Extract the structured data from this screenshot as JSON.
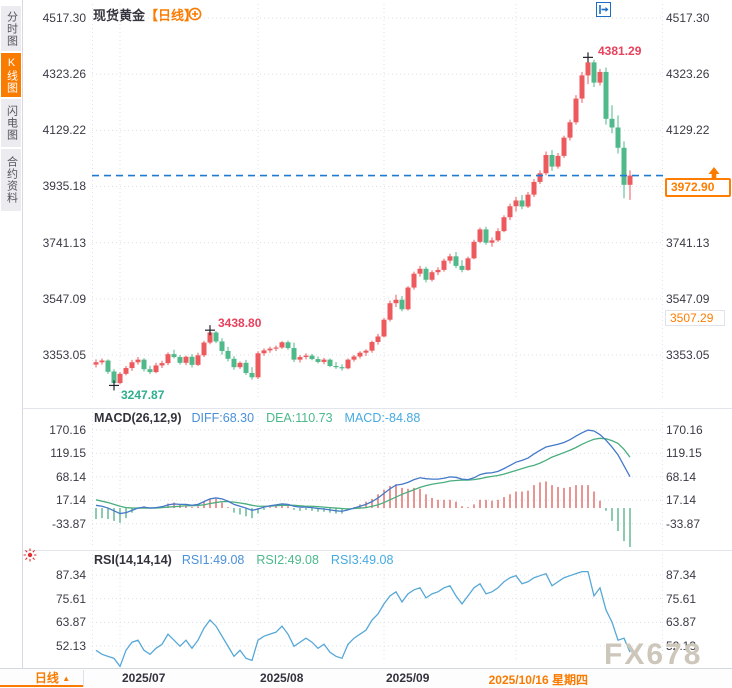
{
  "header": {
    "symbol": "现货黄金",
    "period_tag": "【日线】"
  },
  "sidebar": {
    "tabs": [
      {
        "label": "分时图",
        "active": false
      },
      {
        "label": "K线图",
        "active": true
      },
      {
        "label": "闪电图",
        "active": false
      },
      {
        "label": "合约资料",
        "active": false
      }
    ]
  },
  "toolbar": {
    "icons": [
      {
        "name": "move-crosshair-icon",
        "active": false
      },
      {
        "name": "axis-scale-icon",
        "active": false
      },
      {
        "name": "axis-scale-active-icon",
        "active": true
      },
      {
        "name": "pan-right-icon",
        "active": false
      }
    ]
  },
  "colors": {
    "accent_orange": "#f97b00",
    "up_red": "#ec5a5e",
    "down_green": "#4fb98a",
    "ann_red": "#e8415c",
    "ann_green": "#2fae8e",
    "dashed_blue": "#1f7ad4",
    "diff_line": "#4479c8",
    "dea_line": "#4aae7e",
    "rsi_line": "#56a8d8",
    "hist_up": "#d9504c",
    "hist_down": "#3ea878",
    "icon_blue": "#1b6ec2"
  },
  "bottom_bar": {
    "period_button": "日线",
    "period_arrow": "▲",
    "watermark": "FX678"
  },
  "indicators": {
    "macd": {
      "title": "MACD(26,12,9)",
      "diff_label": "DIFF:68.30",
      "dea_label": "DEA:110.73",
      "macd_label": "MACD:-84.88"
    },
    "rsi": {
      "title": "RSI(14,14,14)",
      "rsi1_label": "RSI1:49.08",
      "rsi2_label": "RSI2:49.08",
      "rsi3_label": "RSI3:49.08"
    }
  },
  "chart_data": [
    {
      "type": "candlestick",
      "title": "现货黄金 日线",
      "y_ticks": [
        "4517.30",
        "4323.26",
        "4129.22",
        "3935.18",
        "3741.13",
        "3547.09",
        "3353.05"
      ],
      "y_tick_values": [
        4517.3,
        4323.26,
        4129.22,
        3935.18,
        3741.13,
        3547.09,
        3353.05
      ],
      "month_ticks": [
        {
          "label": "2025/07",
          "index": 4
        },
        {
          "label": "2025/08",
          "index": 27
        },
        {
          "label": "2025/09",
          "index": 48
        },
        {
          "label": "2025/10",
          "index": 70,
          "hidden": true
        }
      ],
      "highlight_date": {
        "label": "2025/10/16 星期四",
        "index": 82
      },
      "annotations": {
        "high": {
          "index": 82,
          "price": 4381.29,
          "label": "4381.29"
        },
        "swing_high": {
          "index": 19,
          "price": 3438.8,
          "label": "3438.80"
        },
        "low": {
          "index": 3,
          "price": 3247.87,
          "label": "3247.87"
        },
        "current_price": {
          "label": "3972.90",
          "value": 3972.9
        },
        "level2": {
          "label": "3507.29",
          "value": 3507.29
        }
      },
      "candles": [
        [
          3320,
          3338,
          3310,
          3328
        ],
        [
          3328,
          3341,
          3320,
          3334
        ],
        [
          3334,
          3338,
          3288,
          3295
        ],
        [
          3296,
          3304,
          3247.87,
          3256
        ],
        [
          3256,
          3294,
          3252,
          3288
        ],
        [
          3288,
          3315,
          3283,
          3308
        ],
        [
          3308,
          3336,
          3298,
          3328
        ],
        [
          3328,
          3346,
          3320,
          3337
        ],
        [
          3337,
          3342,
          3296,
          3304
        ],
        [
          3304,
          3316,
          3287,
          3294
        ],
        [
          3294,
          3326,
          3290,
          3317
        ],
        [
          3317,
          3333,
          3308,
          3325
        ],
        [
          3325,
          3362,
          3318,
          3356
        ],
        [
          3356,
          3371,
          3341,
          3346
        ],
        [
          3346,
          3353,
          3320,
          3326
        ],
        [
          3326,
          3351,
          3318,
          3347
        ],
        [
          3347,
          3356,
          3310,
          3319
        ],
        [
          3319,
          3361,
          3315,
          3352
        ],
        [
          3352,
          3402,
          3346,
          3396
        ],
        [
          3396,
          3438.8,
          3390,
          3431
        ],
        [
          3431,
          3436,
          3394,
          3400
        ],
        [
          3400,
          3411,
          3354,
          3367
        ],
        [
          3367,
          3381,
          3331,
          3340
        ],
        [
          3340,
          3349,
          3302,
          3311
        ],
        [
          3311,
          3331,
          3305,
          3326
        ],
        [
          3326,
          3336,
          3284,
          3291
        ],
        [
          3291,
          3311,
          3268,
          3276
        ],
        [
          3276,
          3366,
          3270,
          3359
        ],
        [
          3359,
          3376,
          3350,
          3369
        ],
        [
          3369,
          3382,
          3361,
          3375
        ],
        [
          3375,
          3386,
          3367,
          3379
        ],
        [
          3379,
          3401,
          3374,
          3397
        ],
        [
          3397,
          3403,
          3371,
          3377
        ],
        [
          3377,
          3396,
          3329,
          3337
        ],
        [
          3337,
          3353,
          3327,
          3346
        ],
        [
          3346,
          3359,
          3338,
          3351
        ],
        [
          3351,
          3357,
          3335,
          3339
        ],
        [
          3339,
          3348,
          3324,
          3329
        ],
        [
          3329,
          3343,
          3321,
          3337
        ],
        [
          3337,
          3341,
          3311,
          3315
        ],
        [
          3315,
          3329,
          3305,
          3311
        ],
        [
          3311,
          3321,
          3299,
          3307
        ],
        [
          3307,
          3341,
          3304,
          3337
        ],
        [
          3337,
          3353,
          3330,
          3348
        ],
        [
          3348,
          3366,
          3341,
          3361
        ],
        [
          3361,
          3373,
          3350,
          3368
        ],
        [
          3368,
          3403,
          3361,
          3398
        ],
        [
          3398,
          3426,
          3389,
          3417
        ],
        [
          3417,
          3481,
          3414,
          3475
        ],
        [
          3475,
          3541,
          3469,
          3532
        ],
        [
          3532,
          3561,
          3519,
          3544
        ],
        [
          3544,
          3557,
          3504,
          3511
        ],
        [
          3511,
          3591,
          3507,
          3586
        ],
        [
          3586,
          3641,
          3579,
          3634
        ],
        [
          3634,
          3661,
          3624,
          3651
        ],
        [
          3651,
          3658,
          3604,
          3613
        ],
        [
          3613,
          3646,
          3607,
          3639
        ],
        [
          3639,
          3656,
          3629,
          3647
        ],
        [
          3647,
          3686,
          3641,
          3679
        ],
        [
          3679,
          3703,
          3669,
          3694
        ],
        [
          3694,
          3709,
          3653,
          3661
        ],
        [
          3661,
          3681,
          3639,
          3647
        ],
        [
          3647,
          3693,
          3644,
          3687
        ],
        [
          3687,
          3751,
          3684,
          3744
        ],
        [
          3744,
          3793,
          3739,
          3787
        ],
        [
          3787,
          3796,
          3734,
          3741
        ],
        [
          3741,
          3759,
          3727,
          3749
        ],
        [
          3749,
          3791,
          3744,
          3781
        ],
        [
          3781,
          3836,
          3777,
          3829
        ],
        [
          3829,
          3876,
          3819,
          3867
        ],
        [
          3867,
          3899,
          3849,
          3887
        ],
        [
          3887,
          3906,
          3857,
          3866
        ],
        [
          3866,
          3916,
          3861,
          3907
        ],
        [
          3907,
          3961,
          3899,
          3951
        ],
        [
          3951,
          3991,
          3944,
          3981
        ],
        [
          3981,
          4056,
          3974,
          4044
        ],
        [
          4044,
          4061,
          3989,
          4004
        ],
        [
          4004,
          4051,
          3997,
          4041
        ],
        [
          4041,
          4111,
          4034,
          4104
        ],
        [
          4104,
          4166,
          4094,
          4157
        ],
        [
          4157,
          4251,
          4149,
          4239
        ],
        [
          4239,
          4331,
          4224,
          4319
        ],
        [
          4319,
          4381.29,
          4289,
          4364
        ],
        [
          4364,
          4373,
          4279,
          4294
        ],
        [
          4294,
          4341,
          4284,
          4331
        ],
        [
          4331,
          4346,
          4149,
          4169
        ],
        [
          4169,
          4216,
          4119,
          4139
        ],
        [
          4139,
          4181,
          4049,
          4069
        ],
        [
          4069,
          4091,
          3894,
          3941
        ],
        [
          3941,
          3991,
          3889,
          3972.9
        ]
      ]
    },
    {
      "type": "line+histogram",
      "name": "MACD",
      "y_ticks": [
        "170.16",
        "119.15",
        "68.14",
        "17.14",
        "-33.87"
      ],
      "y_tick_values": [
        170.16,
        119.15,
        68.14,
        17.14,
        -33.87
      ],
      "hist_rule": "2*(diff-dea)",
      "diff": [
        6,
        4,
        0,
        -6,
        -12,
        -10,
        -5,
        0,
        2,
        0,
        1,
        3,
        7,
        9,
        8,
        8,
        6,
        8,
        14,
        20,
        22,
        20,
        15,
        8,
        4,
        0,
        -5,
        -2,
        2,
        5,
        7,
        9,
        8,
        4,
        2,
        2,
        1,
        -1,
        -2,
        -4,
        -6,
        -7,
        -4,
        0,
        4,
        8,
        14,
        22,
        32,
        42,
        50,
        52,
        56,
        62,
        66,
        64,
        63,
        63,
        65,
        68,
        67,
        63,
        62,
        66,
        73,
        76,
        77,
        80,
        86,
        93,
        100,
        104,
        109,
        118,
        126,
        133,
        136,
        139,
        143,
        149,
        157,
        164,
        170,
        168,
        160,
        148,
        133,
        116,
        92,
        68.3
      ],
      "dea": [
        18,
        15,
        12,
        8,
        4,
        1,
        0,
        0,
        0,
        0,
        0,
        1,
        2,
        3,
        4,
        5,
        5,
        6,
        7,
        10,
        12,
        14,
        14,
        13,
        11,
        9,
        6,
        4,
        4,
        4,
        5,
        6,
        6,
        6,
        5,
        4,
        4,
        3,
        2,
        1,
        0,
        -1,
        -2,
        -1,
        0,
        1,
        4,
        7,
        12,
        18,
        24,
        30,
        35,
        40,
        45,
        49,
        52,
        54,
        56,
        59,
        60,
        61,
        61,
        62,
        64,
        67,
        69,
        71,
        74,
        78,
        82,
        86,
        90,
        93,
        98,
        104,
        111,
        116,
        121,
        126,
        132,
        139,
        145,
        150,
        152,
        151,
        147,
        141,
        128,
        110.73
      ]
    },
    {
      "type": "line",
      "name": "RSI",
      "y_ticks": [
        "87.34",
        "75.61",
        "63.87",
        "52.13"
      ],
      "y_tick_values": [
        87.34,
        75.61,
        63.87,
        52.13
      ],
      "values": [
        50,
        48,
        47,
        46,
        42,
        50,
        54,
        55,
        50,
        48,
        51,
        53,
        58,
        55,
        52,
        55,
        51,
        55,
        61,
        65,
        62,
        57,
        52,
        47,
        50,
        46,
        45,
        55,
        57,
        58,
        59,
        62,
        58,
        52,
        54,
        56,
        54,
        51,
        53,
        49,
        47,
        46,
        53,
        56,
        58,
        60,
        65,
        68,
        73,
        77,
        79,
        74,
        78,
        80,
        81,
        76,
        78,
        79,
        81,
        82,
        77,
        73,
        77,
        81,
        83,
        78,
        79,
        81,
        84,
        86,
        87,
        83,
        84,
        86,
        87,
        88,
        82,
        84,
        86,
        87,
        88,
        89,
        89,
        77,
        81,
        70,
        64,
        55,
        56,
        49.08
      ]
    }
  ]
}
